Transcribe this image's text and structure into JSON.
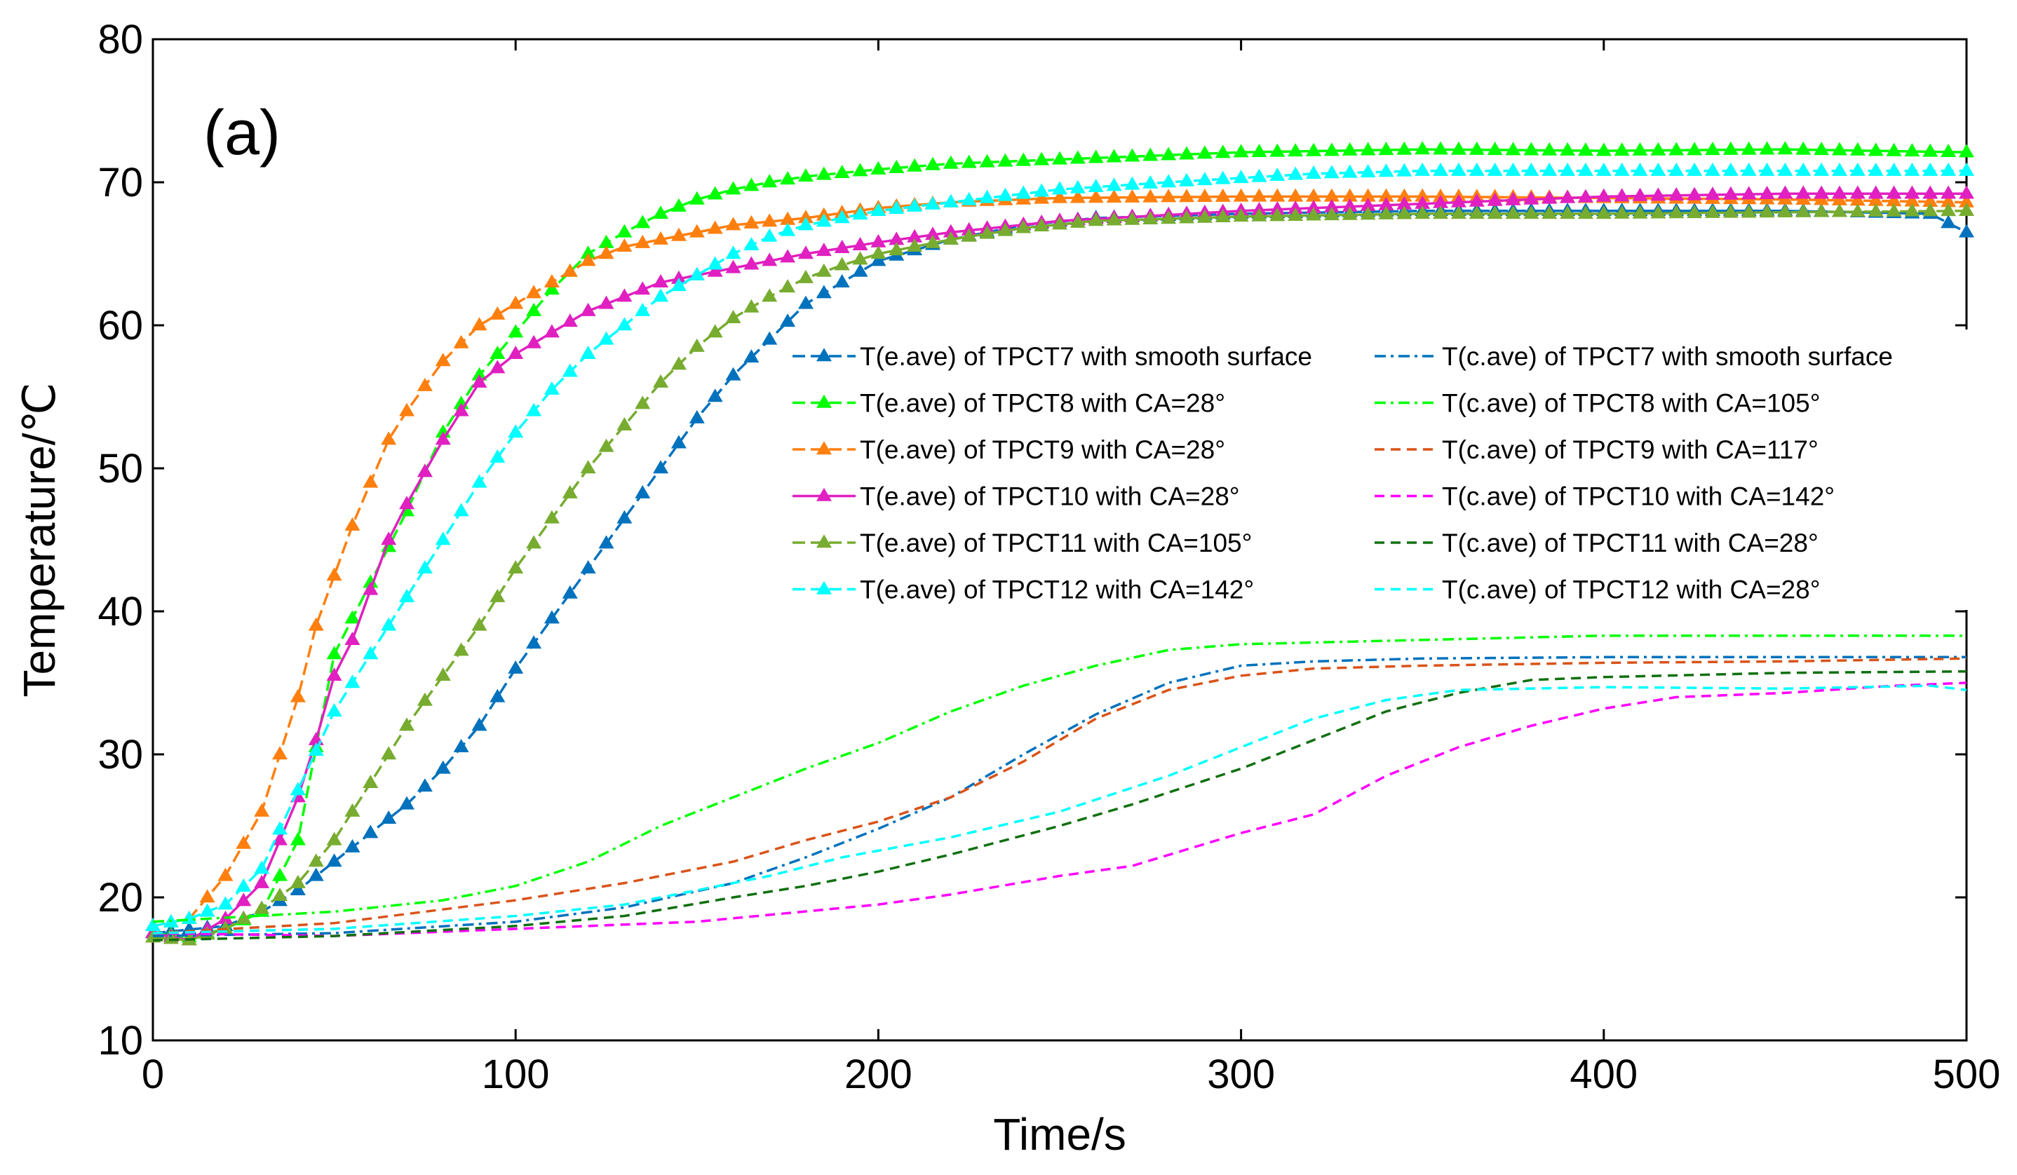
{
  "chart_data": {
    "type": "line",
    "panel_label": "(a)",
    "xlabel": "Time/s",
    "ylabel": "Temperature/℃",
    "xlim": [
      0,
      500
    ],
    "ylim": [
      10,
      80
    ],
    "xticks": [
      "0",
      "100",
      "200",
      "300",
      "400",
      "500"
    ],
    "yticks": [
      "10",
      "20",
      "30",
      "40",
      "50",
      "60",
      "70",
      "80"
    ],
    "grid": false,
    "legend_position": "center-right",
    "series": [
      {
        "name": "T(e.ave) of TPCT7 with smooth surface",
        "color": "#0072BD",
        "style": "dash-marker",
        "points": [
          [
            0,
            17.5
          ],
          [
            20,
            18
          ],
          [
            30,
            19
          ],
          [
            40,
            20.5
          ],
          [
            50,
            22.5
          ],
          [
            60,
            24.5
          ],
          [
            70,
            26.5
          ],
          [
            80,
            29
          ],
          [
            90,
            32
          ],
          [
            100,
            36
          ],
          [
            110,
            39.5
          ],
          [
            120,
            43
          ],
          [
            130,
            46.5
          ],
          [
            140,
            50
          ],
          [
            150,
            53.5
          ],
          [
            160,
            56.5
          ],
          [
            170,
            59
          ],
          [
            180,
            61.5
          ],
          [
            190,
            63
          ],
          [
            200,
            64.5
          ],
          [
            220,
            66
          ],
          [
            240,
            67
          ],
          [
            260,
            67.5
          ],
          [
            300,
            67.8
          ],
          [
            350,
            68
          ],
          [
            400,
            68
          ],
          [
            450,
            68
          ],
          [
            490,
            67.8
          ],
          [
            500,
            66.5
          ]
        ]
      },
      {
        "name": "T(e.ave) of TPCT8 with CA=28°",
        "color": "#00FF00",
        "style": "dash-marker",
        "points": [
          [
            0,
            17.5
          ],
          [
            10,
            17.2
          ],
          [
            20,
            17.8
          ],
          [
            30,
            19
          ],
          [
            40,
            24
          ],
          [
            50,
            37
          ],
          [
            60,
            42
          ],
          [
            70,
            47
          ],
          [
            80,
            52.5
          ],
          [
            90,
            56.5
          ],
          [
            100,
            59.5
          ],
          [
            110,
            62.5
          ],
          [
            120,
            65
          ],
          [
            130,
            66.5
          ],
          [
            140,
            67.8
          ],
          [
            150,
            68.8
          ],
          [
            160,
            69.5
          ],
          [
            170,
            70
          ],
          [
            180,
            70.4
          ],
          [
            200,
            70.9
          ],
          [
            220,
            71.3
          ],
          [
            250,
            71.6
          ],
          [
            300,
            72.1
          ],
          [
            350,
            72.3
          ],
          [
            400,
            72.2
          ],
          [
            450,
            72.3
          ],
          [
            500,
            72.1
          ]
        ]
      },
      {
        "name": "T(e.ave) of TPCT9 with CA=28°",
        "color": "#FF7F0E",
        "style": "dash-marker",
        "points": [
          [
            0,
            18
          ],
          [
            10,
            18.5
          ],
          [
            20,
            21.5
          ],
          [
            30,
            26
          ],
          [
            40,
            34
          ],
          [
            45,
            39
          ],
          [
            50,
            42.5
          ],
          [
            55,
            46
          ],
          [
            60,
            49
          ],
          [
            65,
            52
          ],
          [
            70,
            54
          ],
          [
            80,
            57.5
          ],
          [
            90,
            60
          ],
          [
            100,
            61.5
          ],
          [
            110,
            63
          ],
          [
            120,
            64.5
          ],
          [
            130,
            65.5
          ],
          [
            140,
            66
          ],
          [
            150,
            66.5
          ],
          [
            160,
            67
          ],
          [
            180,
            67.5
          ],
          [
            200,
            68.2
          ],
          [
            220,
            68.6
          ],
          [
            250,
            68.9
          ],
          [
            300,
            69
          ],
          [
            350,
            69
          ],
          [
            400,
            68.9
          ],
          [
            450,
            68.8
          ],
          [
            500,
            68.6
          ]
        ]
      },
      {
        "name": "T(e.ave) of TPCT10 with CA=28°",
        "color": "#E020C0",
        "style": "solid-marker",
        "points": [
          [
            0,
            17.5
          ],
          [
            10,
            17
          ],
          [
            20,
            18.5
          ],
          [
            30,
            21
          ],
          [
            40,
            27
          ],
          [
            45,
            31
          ],
          [
            50,
            35.5
          ],
          [
            55,
            38
          ],
          [
            60,
            41.5
          ],
          [
            65,
            45
          ],
          [
            70,
            47.5
          ],
          [
            80,
            52
          ],
          [
            90,
            56
          ],
          [
            100,
            58
          ],
          [
            110,
            59.5
          ],
          [
            120,
            61
          ],
          [
            130,
            62
          ],
          [
            140,
            63
          ],
          [
            150,
            63.5
          ],
          [
            160,
            64
          ],
          [
            170,
            64.5
          ],
          [
            180,
            65
          ],
          [
            200,
            65.8
          ],
          [
            220,
            66.5
          ],
          [
            250,
            67.3
          ],
          [
            300,
            68
          ],
          [
            350,
            68.5
          ],
          [
            400,
            69
          ],
          [
            450,
            69.2
          ],
          [
            500,
            69.2
          ]
        ]
      },
      {
        "name": "T(e.ave) of TPCT11 with CA=105°",
        "color": "#77AC30",
        "style": "dash-marker",
        "points": [
          [
            0,
            17.2
          ],
          [
            10,
            17
          ],
          [
            20,
            17.8
          ],
          [
            30,
            19.2
          ],
          [
            40,
            21
          ],
          [
            50,
            24
          ],
          [
            60,
            28
          ],
          [
            70,
            32
          ],
          [
            80,
            35.5
          ],
          [
            90,
            39
          ],
          [
            100,
            43
          ],
          [
            110,
            46.5
          ],
          [
            120,
            50
          ],
          [
            130,
            53
          ],
          [
            140,
            56
          ],
          [
            150,
            58.5
          ],
          [
            160,
            60.5
          ],
          [
            170,
            62
          ],
          [
            180,
            63.3
          ],
          [
            190,
            64.2
          ],
          [
            200,
            65
          ],
          [
            220,
            66
          ],
          [
            240,
            66.8
          ],
          [
            260,
            67.3
          ],
          [
            300,
            67.6
          ],
          [
            350,
            67.8
          ],
          [
            400,
            67.8
          ],
          [
            450,
            67.9
          ],
          [
            500,
            68
          ]
        ]
      },
      {
        "name": "T(e.ave) of TPCT12 with CA=142°",
        "color": "#00FFFF",
        "style": "dash-marker",
        "points": [
          [
            0,
            18
          ],
          [
            10,
            18.5
          ],
          [
            20,
            19.5
          ],
          [
            30,
            22
          ],
          [
            40,
            27.5
          ],
          [
            50,
            33
          ],
          [
            60,
            37
          ],
          [
            70,
            41
          ],
          [
            80,
            45
          ],
          [
            90,
            49
          ],
          [
            100,
            52.5
          ],
          [
            110,
            55.5
          ],
          [
            120,
            58
          ],
          [
            130,
            60
          ],
          [
            140,
            62
          ],
          [
            150,
            63.5
          ],
          [
            160,
            65
          ],
          [
            170,
            66.2
          ],
          [
            180,
            67
          ],
          [
            200,
            68
          ],
          [
            220,
            68.6
          ],
          [
            250,
            69.5
          ],
          [
            280,
            70
          ],
          [
            300,
            70.3
          ],
          [
            320,
            70.6
          ],
          [
            350,
            70.8
          ],
          [
            400,
            70.8
          ],
          [
            450,
            70.8
          ],
          [
            500,
            70.8
          ]
        ]
      },
      {
        "name": "T(c.ave) of TPCT7 with smooth surface",
        "color": "#0072BD",
        "style": "dashdot",
        "points": [
          [
            0,
            17.3
          ],
          [
            50,
            17.5
          ],
          [
            100,
            18.3
          ],
          [
            130,
            19.3
          ],
          [
            160,
            21
          ],
          [
            180,
            22.8
          ],
          [
            200,
            24.8
          ],
          [
            220,
            27
          ],
          [
            240,
            30
          ],
          [
            260,
            32.8
          ],
          [
            280,
            35
          ],
          [
            300,
            36.2
          ],
          [
            320,
            36.5
          ],
          [
            350,
            36.7
          ],
          [
            400,
            36.8
          ],
          [
            450,
            36.8
          ],
          [
            500,
            36.8
          ]
        ]
      },
      {
        "name": "T(c.ave) of TPCT8 with CA=105°",
        "color": "#00FF00",
        "style": "dashdot",
        "points": [
          [
            0,
            18.3
          ],
          [
            50,
            19
          ],
          [
            80,
            19.8
          ],
          [
            100,
            20.8
          ],
          [
            120,
            22.5
          ],
          [
            140,
            25
          ],
          [
            160,
            27
          ],
          [
            180,
            29
          ],
          [
            200,
            30.8
          ],
          [
            220,
            33
          ],
          [
            240,
            34.8
          ],
          [
            260,
            36.2
          ],
          [
            280,
            37.3
          ],
          [
            300,
            37.7
          ],
          [
            350,
            38
          ],
          [
            400,
            38.3
          ],
          [
            450,
            38.3
          ],
          [
            500,
            38.3
          ]
        ]
      },
      {
        "name": "T(c.ave) of TPCT9 with CA=117°",
        "color": "#D95319",
        "style": "dashed",
        "points": [
          [
            0,
            17.5
          ],
          [
            50,
            18.2
          ],
          [
            100,
            19.8
          ],
          [
            130,
            21
          ],
          [
            160,
            22.5
          ],
          [
            180,
            24
          ],
          [
            200,
            25.3
          ],
          [
            220,
            27
          ],
          [
            240,
            29.5
          ],
          [
            260,
            32.5
          ],
          [
            280,
            34.5
          ],
          [
            300,
            35.5
          ],
          [
            320,
            36
          ],
          [
            350,
            36.2
          ],
          [
            400,
            36.4
          ],
          [
            450,
            36.5
          ],
          [
            500,
            36.7
          ]
        ]
      },
      {
        "name": "T(c.ave) of TPCT10 with CA=142°",
        "color": "#FF00FF",
        "style": "dashed",
        "points": [
          [
            0,
            17.5
          ],
          [
            50,
            17.3
          ],
          [
            100,
            17.8
          ],
          [
            150,
            18.3
          ],
          [
            200,
            19.5
          ],
          [
            220,
            20.2
          ],
          [
            250,
            21.5
          ],
          [
            270,
            22.2
          ],
          [
            300,
            24.5
          ],
          [
            320,
            25.8
          ],
          [
            340,
            28.5
          ],
          [
            360,
            30.5
          ],
          [
            380,
            32
          ],
          [
            400,
            33.2
          ],
          [
            420,
            34
          ],
          [
            450,
            34.3
          ],
          [
            480,
            34.8
          ],
          [
            500,
            35
          ]
        ]
      },
      {
        "name": "T(c.ave) of TPCT11 with CA=28°",
        "color": "#107010",
        "style": "dashed",
        "points": [
          [
            0,
            17
          ],
          [
            50,
            17.3
          ],
          [
            100,
            18
          ],
          [
            130,
            18.7
          ],
          [
            160,
            20
          ],
          [
            180,
            20.8
          ],
          [
            200,
            21.8
          ],
          [
            220,
            23
          ],
          [
            250,
            25
          ],
          [
            270,
            26.5
          ],
          [
            300,
            29
          ],
          [
            320,
            31
          ],
          [
            340,
            33
          ],
          [
            360,
            34.3
          ],
          [
            380,
            35.2
          ],
          [
            400,
            35.4
          ],
          [
            450,
            35.7
          ],
          [
            500,
            35.8
          ]
        ]
      },
      {
        "name": "T(c.ave) of TPCT12 with CA=28°",
        "color": "#00FFFF",
        "style": "dashed",
        "points": [
          [
            0,
            17.5
          ],
          [
            50,
            17.8
          ],
          [
            100,
            18.7
          ],
          [
            130,
            19.5
          ],
          [
            150,
            20.5
          ],
          [
            170,
            21.5
          ],
          [
            190,
            22.8
          ],
          [
            220,
            24.2
          ],
          [
            250,
            26
          ],
          [
            280,
            28.5
          ],
          [
            300,
            30.5
          ],
          [
            320,
            32.5
          ],
          [
            340,
            33.8
          ],
          [
            360,
            34.5
          ],
          [
            400,
            34.7
          ],
          [
            450,
            34.6
          ],
          [
            490,
            34.8
          ],
          [
            500,
            34.5
          ]
        ]
      }
    ]
  }
}
